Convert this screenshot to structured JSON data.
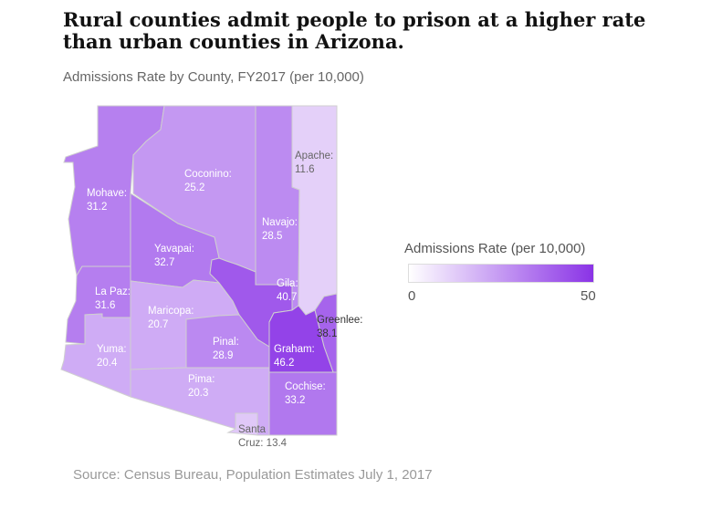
{
  "title": "Rural counties admit people to prison at a higher rate than urban counties in Arizona.",
  "subtitle": "Admissions Rate by County, FY2017 (per 10,000)",
  "source": "Source: Census Bureau, Population Estimates July 1, 2017",
  "legend": {
    "title": "Admissions Rate (per 10,000)",
    "min": "0",
    "max": "50",
    "color_low": "#ffffff",
    "color_high": "#8a33e6"
  },
  "chart_data": {
    "type": "choropleth",
    "region": "Arizona counties",
    "counties": [
      {
        "name": "Mohave",
        "label": "Mohave:",
        "value": 31.2
      },
      {
        "name": "Coconino",
        "label": "Coconino:",
        "value": 25.2
      },
      {
        "name": "Navajo",
        "label": "Navajo:",
        "value": 28.5
      },
      {
        "name": "Apache",
        "label": "Apache:",
        "value": 11.6
      },
      {
        "name": "Yavapai",
        "label": "Yavapai:",
        "value": 32.7
      },
      {
        "name": "La Paz",
        "label": "La Paz:",
        "value": 31.6
      },
      {
        "name": "Maricopa",
        "label": "Maricopa:",
        "value": 20.7
      },
      {
        "name": "Gila",
        "label": "Gila:",
        "value": 40.7
      },
      {
        "name": "Greenlee",
        "label": "Greenlee:",
        "value": 38.1
      },
      {
        "name": "Yuma",
        "label": "Yuma:",
        "value": 20.4
      },
      {
        "name": "Pinal",
        "label": "Pinal:",
        "value": 28.9
      },
      {
        "name": "Graham",
        "label": "Graham:",
        "value": 46.2
      },
      {
        "name": "Pima",
        "label": "Pima:",
        "value": 20.3
      },
      {
        "name": "Cochise",
        "label": "Cochise:",
        "value": 33.2
      },
      {
        "name": "Santa Cruz",
        "label": "Santa",
        "label2": "Cruz: 13.4",
        "value": 13.4
      }
    ],
    "scale": [
      0,
      50
    ]
  }
}
